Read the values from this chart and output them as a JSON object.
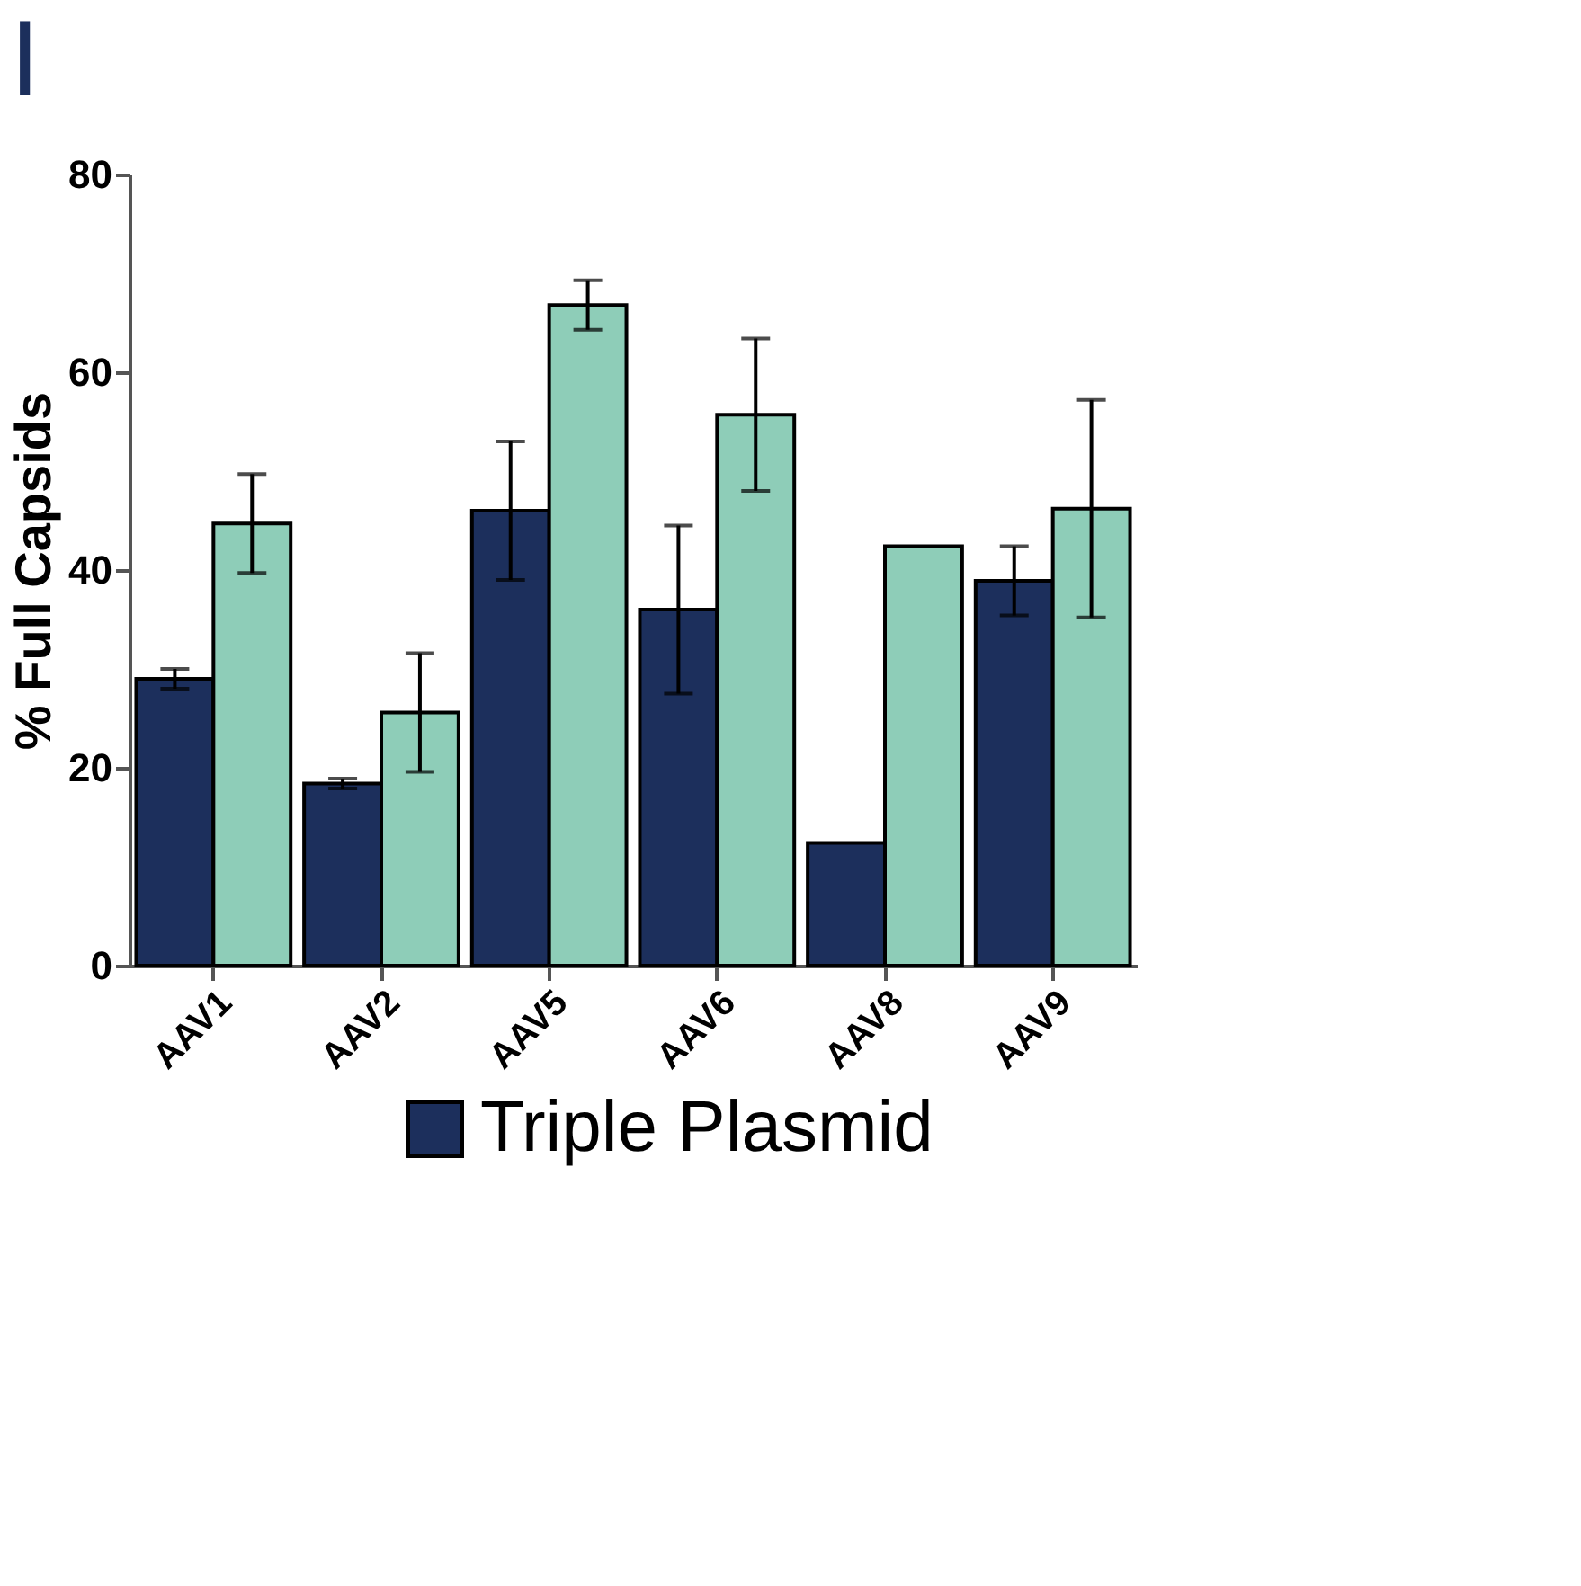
{
  "chart_data": {
    "type": "bar",
    "title": "I",
    "ylabel": "% Full Capsids",
    "categories": [
      "AAV1",
      "AAV2",
      "AAV5",
      "AAV6",
      "AAV8",
      "AAV9"
    ],
    "series": [
      {
        "name": "Triple Plasmid",
        "color": "#1c2f5c",
        "values": [
          29,
          18.4,
          46,
          36,
          12.4,
          38.9
        ],
        "errors": [
          1,
          0.5,
          7,
          8.5,
          null,
          3.5
        ]
      },
      {
        "color": "#8ecdb8",
        "values": [
          44.7,
          25.6,
          66.8,
          55.7,
          42.4,
          46.2
        ],
        "errors": [
          5,
          6,
          2.5,
          7.7,
          null,
          11
        ]
      }
    ],
    "ylim": [
      0,
      80
    ],
    "yticks": [
      0,
      20,
      40,
      60,
      80
    ],
    "grid": false,
    "legend": "bottom"
  }
}
